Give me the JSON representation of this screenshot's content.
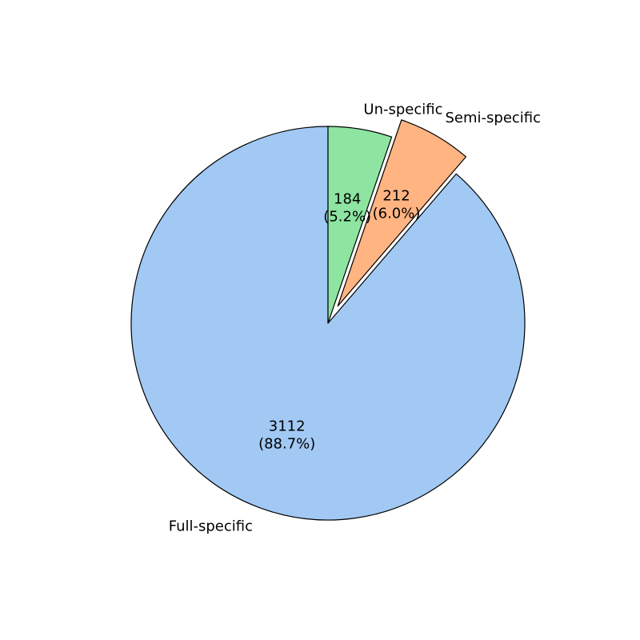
{
  "chart_data": {
    "type": "pie",
    "title": "",
    "slices": [
      {
        "label": "Full-specific",
        "value": 3112,
        "value_text": "3112",
        "pct_text": "(88.7%)",
        "color": "#a1c9f4",
        "exploded": false
      },
      {
        "label": "Semi-specific",
        "value": 212,
        "value_text": "212",
        "pct_text": "(6.0%)",
        "color": "#ffb482",
        "exploded": true
      },
      {
        "label": "Un-specific",
        "value": 184,
        "value_text": "184",
        "pct_text": "(5.2%)",
        "color": "#8de5a1",
        "exploded": false
      }
    ]
  }
}
